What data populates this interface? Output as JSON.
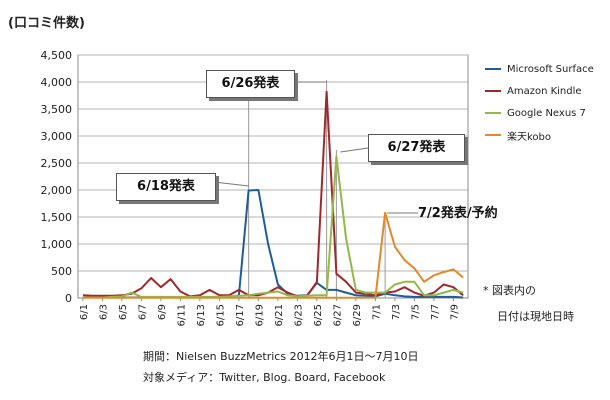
{
  "y_title": "(口コミ件数)",
  "chart_data": {
    "type": "line",
    "x": [
      "6/1",
      "6/2",
      "6/3",
      "6/4",
      "6/5",
      "6/6",
      "6/7",
      "6/8",
      "6/9",
      "6/10",
      "6/11",
      "6/12",
      "6/13",
      "6/14",
      "6/15",
      "6/16",
      "6/17",
      "6/18",
      "6/19",
      "6/20",
      "6/21",
      "6/22",
      "6/23",
      "6/24",
      "6/25",
      "6/26",
      "6/27",
      "6/28",
      "6/29",
      "6/30",
      "7/1",
      "7/2",
      "7/3",
      "7/4",
      "7/5",
      "7/6",
      "7/7",
      "7/8",
      "7/9",
      "7/10"
    ],
    "x_tick_labels": [
      "6/1",
      "6/3",
      "6/5",
      "6/7",
      "6/9",
      "6/11",
      "6/13",
      "6/15",
      "6/17",
      "6/19",
      "6/21",
      "6/23",
      "6/25",
      "6/27",
      "6/29",
      "7/1",
      "7/3",
      "7/5",
      "7/7",
      "7/9"
    ],
    "ylim": [
      0,
      4500
    ],
    "y_ticks": [
      0,
      500,
      1000,
      1500,
      2000,
      2500,
      3000,
      3500,
      4000,
      4500
    ],
    "y_tick_labels": [
      "0",
      "500",
      "1,000",
      "1,500",
      "2,000",
      "2,500",
      "3,000",
      "3,500",
      "4,000",
      "4,500"
    ],
    "grid": "horizontal",
    "legend_position": "right",
    "series": [
      {
        "name": "Microsoft Surface",
        "color": "#1f5c99",
        "values": [
          10,
          10,
          10,
          10,
          10,
          10,
          10,
          10,
          10,
          10,
          10,
          10,
          10,
          10,
          10,
          15,
          50,
          1990,
          2000,
          1000,
          250,
          80,
          40,
          50,
          280,
          150,
          150,
          100,
          50,
          40,
          30,
          80,
          50,
          30,
          20,
          20,
          20,
          20,
          20,
          10
        ]
      },
      {
        "name": "Amazon Kindle",
        "color": "#a0282d",
        "values": [
          50,
          40,
          40,
          40,
          50,
          80,
          180,
          370,
          200,
          350,
          120,
          30,
          50,
          150,
          50,
          50,
          150,
          50,
          50,
          100,
          200,
          100,
          30,
          40,
          300,
          3820,
          450,
          300,
          100,
          80,
          50,
          100,
          120,
          200,
          100,
          40,
          100,
          250,
          200,
          50
        ]
      },
      {
        "name": "Google Nexus 7",
        "color": "#93b94a",
        "values": [
          10,
          10,
          10,
          20,
          30,
          100,
          20,
          20,
          20,
          20,
          20,
          20,
          20,
          20,
          20,
          30,
          40,
          50,
          80,
          100,
          120,
          50,
          30,
          40,
          50,
          50,
          2620,
          1100,
          150,
          100,
          100,
          100,
          250,
          300,
          300,
          50,
          50,
          100,
          150,
          100
        ]
      },
      {
        "name": "楽天kobo",
        "color": "#e08a2c",
        "values": [
          5,
          5,
          5,
          5,
          5,
          5,
          5,
          5,
          5,
          5,
          5,
          5,
          5,
          5,
          5,
          5,
          5,
          5,
          5,
          5,
          5,
          5,
          5,
          5,
          5,
          5,
          5,
          5,
          5,
          5,
          5,
          1580,
          950,
          700,
          550,
          300,
          420,
          480,
          530,
          380
        ]
      }
    ],
    "annotations": [
      {
        "text": "6/18発表",
        "x": "6/18"
      },
      {
        "text": "6/26発表",
        "x": "6/26"
      },
      {
        "text": "6/27発表",
        "x": "6/27"
      },
      {
        "text": "7/2発表/予約",
        "x": "7/2"
      }
    ]
  },
  "note": {
    "line1": "* 図表内の",
    "line2": "日付は現地日時"
  },
  "footer": {
    "line1": "期間：Nielsen BuzzMetrics 2012年6月1日〜7月10日",
    "line2": "対象メディア：Twitter, Blog. Board, Facebook"
  }
}
